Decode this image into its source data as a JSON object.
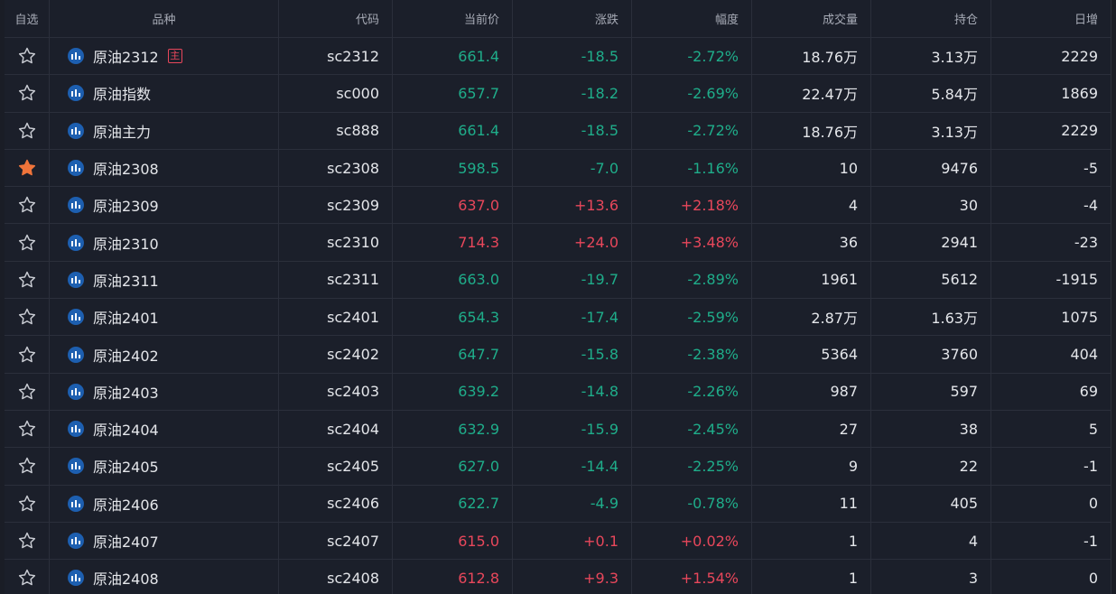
{
  "columns": {
    "fav": "自选",
    "name": "品种",
    "code": "代码",
    "price": "当前价",
    "change": "涨跌",
    "pct": "幅度",
    "volume": "成交量",
    "oi": "持仓",
    "daily": "日增"
  },
  "colors": {
    "up": "#e8475b",
    "down": "#1fad8a",
    "starred": "#f0743a"
  },
  "rows": [
    {
      "starred": false,
      "name": "原油2312",
      "badge": "主",
      "code": "sc2312",
      "price": "661.4",
      "change": "-18.5",
      "pct": "-2.72%",
      "volume": "18.76万",
      "oi": "3.13万",
      "daily": "2229",
      "dir": "down"
    },
    {
      "starred": false,
      "name": "原油指数",
      "badge": "",
      "code": "sc000",
      "price": "657.7",
      "change": "-18.2",
      "pct": "-2.69%",
      "volume": "22.47万",
      "oi": "5.84万",
      "daily": "1869",
      "dir": "down"
    },
    {
      "starred": false,
      "name": "原油主力",
      "badge": "",
      "code": "sc888",
      "price": "661.4",
      "change": "-18.5",
      "pct": "-2.72%",
      "volume": "18.76万",
      "oi": "3.13万",
      "daily": "2229",
      "dir": "down"
    },
    {
      "starred": true,
      "name": "原油2308",
      "badge": "",
      "code": "sc2308",
      "price": "598.5",
      "change": "-7.0",
      "pct": "-1.16%",
      "volume": "10",
      "oi": "9476",
      "daily": "-5",
      "dir": "down"
    },
    {
      "starred": false,
      "name": "原油2309",
      "badge": "",
      "code": "sc2309",
      "price": "637.0",
      "change": "+13.6",
      "pct": "+2.18%",
      "volume": "4",
      "oi": "30",
      "daily": "-4",
      "dir": "up"
    },
    {
      "starred": false,
      "name": "原油2310",
      "badge": "",
      "code": "sc2310",
      "price": "714.3",
      "change": "+24.0",
      "pct": "+3.48%",
      "volume": "36",
      "oi": "2941",
      "daily": "-23",
      "dir": "up"
    },
    {
      "starred": false,
      "name": "原油2311",
      "badge": "",
      "code": "sc2311",
      "price": "663.0",
      "change": "-19.7",
      "pct": "-2.89%",
      "volume": "1961",
      "oi": "5612",
      "daily": "-1915",
      "dir": "down"
    },
    {
      "starred": false,
      "name": "原油2401",
      "badge": "",
      "code": "sc2401",
      "price": "654.3",
      "change": "-17.4",
      "pct": "-2.59%",
      "volume": "2.87万",
      "oi": "1.63万",
      "daily": "1075",
      "dir": "down"
    },
    {
      "starred": false,
      "name": "原油2402",
      "badge": "",
      "code": "sc2402",
      "price": "647.7",
      "change": "-15.8",
      "pct": "-2.38%",
      "volume": "5364",
      "oi": "3760",
      "daily": "404",
      "dir": "down"
    },
    {
      "starred": false,
      "name": "原油2403",
      "badge": "",
      "code": "sc2403",
      "price": "639.2",
      "change": "-14.8",
      "pct": "-2.26%",
      "volume": "987",
      "oi": "597",
      "daily": "69",
      "dir": "down"
    },
    {
      "starred": false,
      "name": "原油2404",
      "badge": "",
      "code": "sc2404",
      "price": "632.9",
      "change": "-15.9",
      "pct": "-2.45%",
      "volume": "27",
      "oi": "38",
      "daily": "5",
      "dir": "down"
    },
    {
      "starred": false,
      "name": "原油2405",
      "badge": "",
      "code": "sc2405",
      "price": "627.0",
      "change": "-14.4",
      "pct": "-2.25%",
      "volume": "9",
      "oi": "22",
      "daily": "-1",
      "dir": "down"
    },
    {
      "starred": false,
      "name": "原油2406",
      "badge": "",
      "code": "sc2406",
      "price": "622.7",
      "change": "-4.9",
      "pct": "-0.78%",
      "volume": "11",
      "oi": "405",
      "daily": "0",
      "dir": "down"
    },
    {
      "starred": false,
      "name": "原油2407",
      "badge": "",
      "code": "sc2407",
      "price": "615.0",
      "change": "+0.1",
      "pct": "+0.02%",
      "volume": "1",
      "oi": "4",
      "daily": "-1",
      "dir": "up"
    },
    {
      "starred": false,
      "name": "原油2408",
      "badge": "",
      "code": "sc2408",
      "price": "612.8",
      "change": "+9.3",
      "pct": "+1.54%",
      "volume": "1",
      "oi": "3",
      "daily": "0",
      "dir": "up"
    }
  ]
}
